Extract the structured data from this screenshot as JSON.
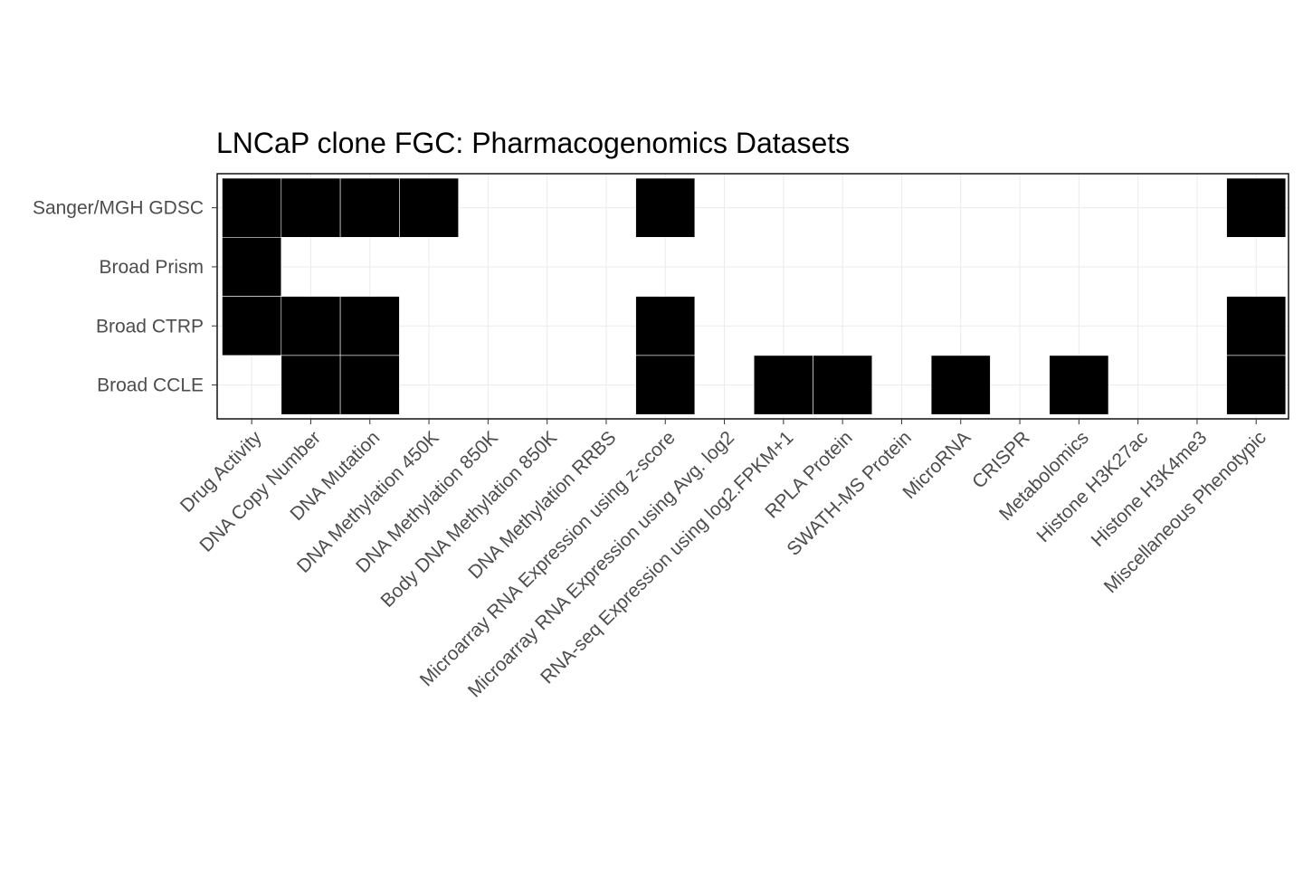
{
  "chart_data": {
    "type": "heatmap",
    "title": "LNCaP clone FGC: Pharmacogenomics Datasets",
    "xlabel": "",
    "ylabel": "",
    "x_categories": [
      "Drug Activity",
      "DNA Copy Number",
      "DNA Mutation",
      "DNA Methylation 450K",
      "DNA Methylation 850K",
      "Body DNA Methylation 850K",
      "DNA Methylation RRBS",
      "Microarray RNA Expression using z-score",
      "Microarray RNA Expression using Avg. log2",
      "RNA-seq Expression using log2.FPKM+1",
      "RPLA Protein",
      "SWATH-MS Protein",
      "MicroRNA",
      "CRISPR",
      "Metabolomics",
      "Histone H3K27ac",
      "Histone H3K4me3",
      "Miscellaneous Phenotypic"
    ],
    "y_categories": [
      "Sanger/MGH GDSC",
      "Broad Prism",
      "Broad CTRP",
      "Broad CCLE"
    ],
    "matrix": [
      [
        1,
        1,
        1,
        1,
        0,
        0,
        0,
        1,
        0,
        0,
        0,
        0,
        0,
        0,
        0,
        0,
        0,
        1
      ],
      [
        1,
        0,
        0,
        0,
        0,
        0,
        0,
        0,
        0,
        0,
        0,
        0,
        0,
        0,
        0,
        0,
        0,
        0
      ],
      [
        1,
        1,
        1,
        0,
        0,
        0,
        0,
        1,
        0,
        0,
        0,
        0,
        0,
        0,
        0,
        0,
        0,
        1
      ],
      [
        0,
        1,
        1,
        0,
        0,
        0,
        0,
        1,
        0,
        1,
        1,
        0,
        1,
        0,
        1,
        0,
        0,
        1
      ]
    ],
    "fill_color": "#000000",
    "grid": true,
    "legend": "none"
  }
}
